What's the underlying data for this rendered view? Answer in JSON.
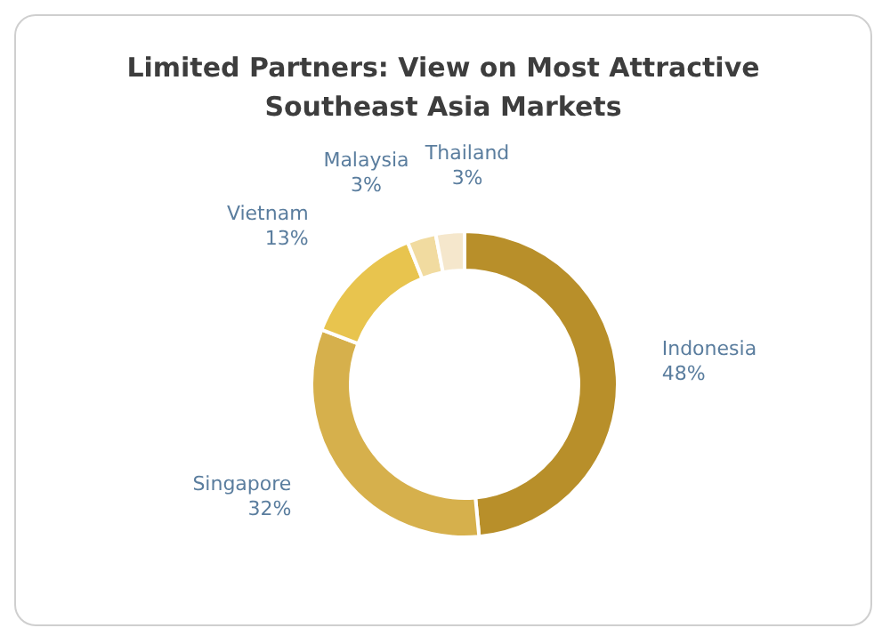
{
  "chart_data": {
    "type": "donut",
    "title": "Limited Partners: View on Most Attractive Southeast Asia Markets",
    "categories": [
      "Indonesia",
      "Singapore",
      "Vietnam",
      "Malaysia",
      "Thailand"
    ],
    "values": [
      48,
      32,
      13,
      3,
      3
    ],
    "value_labels": [
      "48%",
      "32%",
      "13%",
      "3%",
      "3%"
    ],
    "colors": [
      "#b88f2a",
      "#d6b04c",
      "#e8c44e",
      "#f1dba0",
      "#f5e7cc"
    ],
    "legend": false
  }
}
